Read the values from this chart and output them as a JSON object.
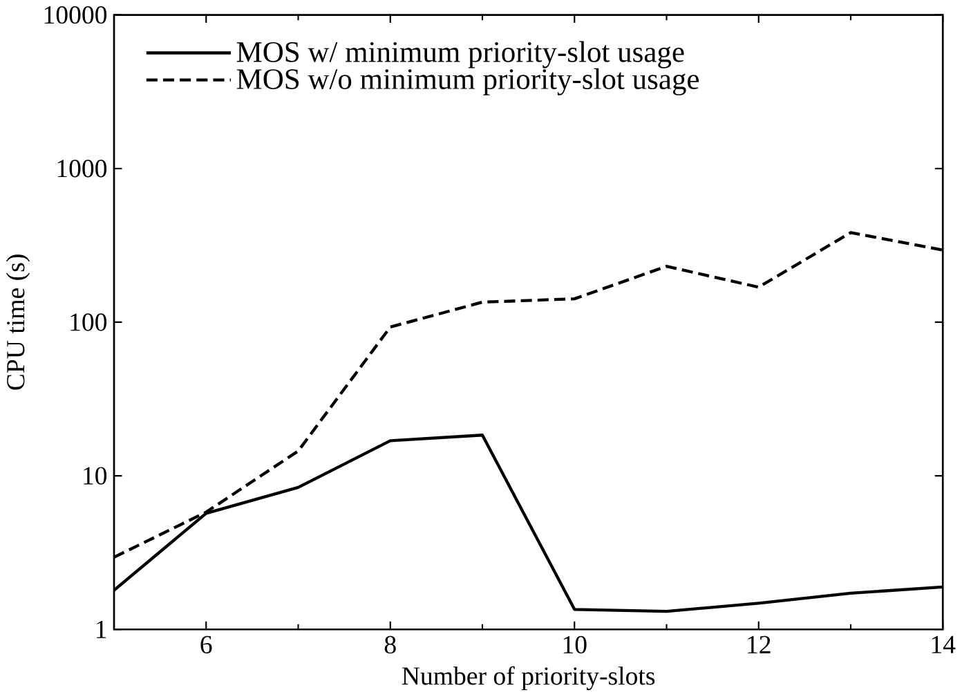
{
  "chart_data": {
    "type": "line",
    "xlabel": "Number of priority-slots",
    "ylabel": "CPU time (s)",
    "x": [
      5,
      6,
      7,
      8,
      9,
      10,
      11,
      12,
      13,
      14
    ],
    "series": [
      {
        "name": "MOS w/ minimum priority-slot usage",
        "color": "#000000",
        "line_style": "solid",
        "values": [
          1.8,
          5.7,
          8.4,
          16.9,
          18.4,
          1.35,
          1.31,
          1.48,
          1.72,
          1.89
        ]
      },
      {
        "name": "MOS w/o minimum priority-slot usage",
        "color": "#000000",
        "line_style": "dashed",
        "values": [
          2.95,
          5.8,
          14.5,
          93,
          135,
          142,
          231,
          169,
          383,
          295
        ]
      }
    ],
    "log": "y",
    "xlim": [
      5,
      14
    ],
    "ylim": [
      1,
      10000
    ],
    "xticks": [
      6,
      8,
      10,
      12,
      14
    ],
    "yticks": [
      1,
      10,
      100,
      1000,
      10000
    ],
    "legend": "top left",
    "marker": "none",
    "grid": false
  }
}
